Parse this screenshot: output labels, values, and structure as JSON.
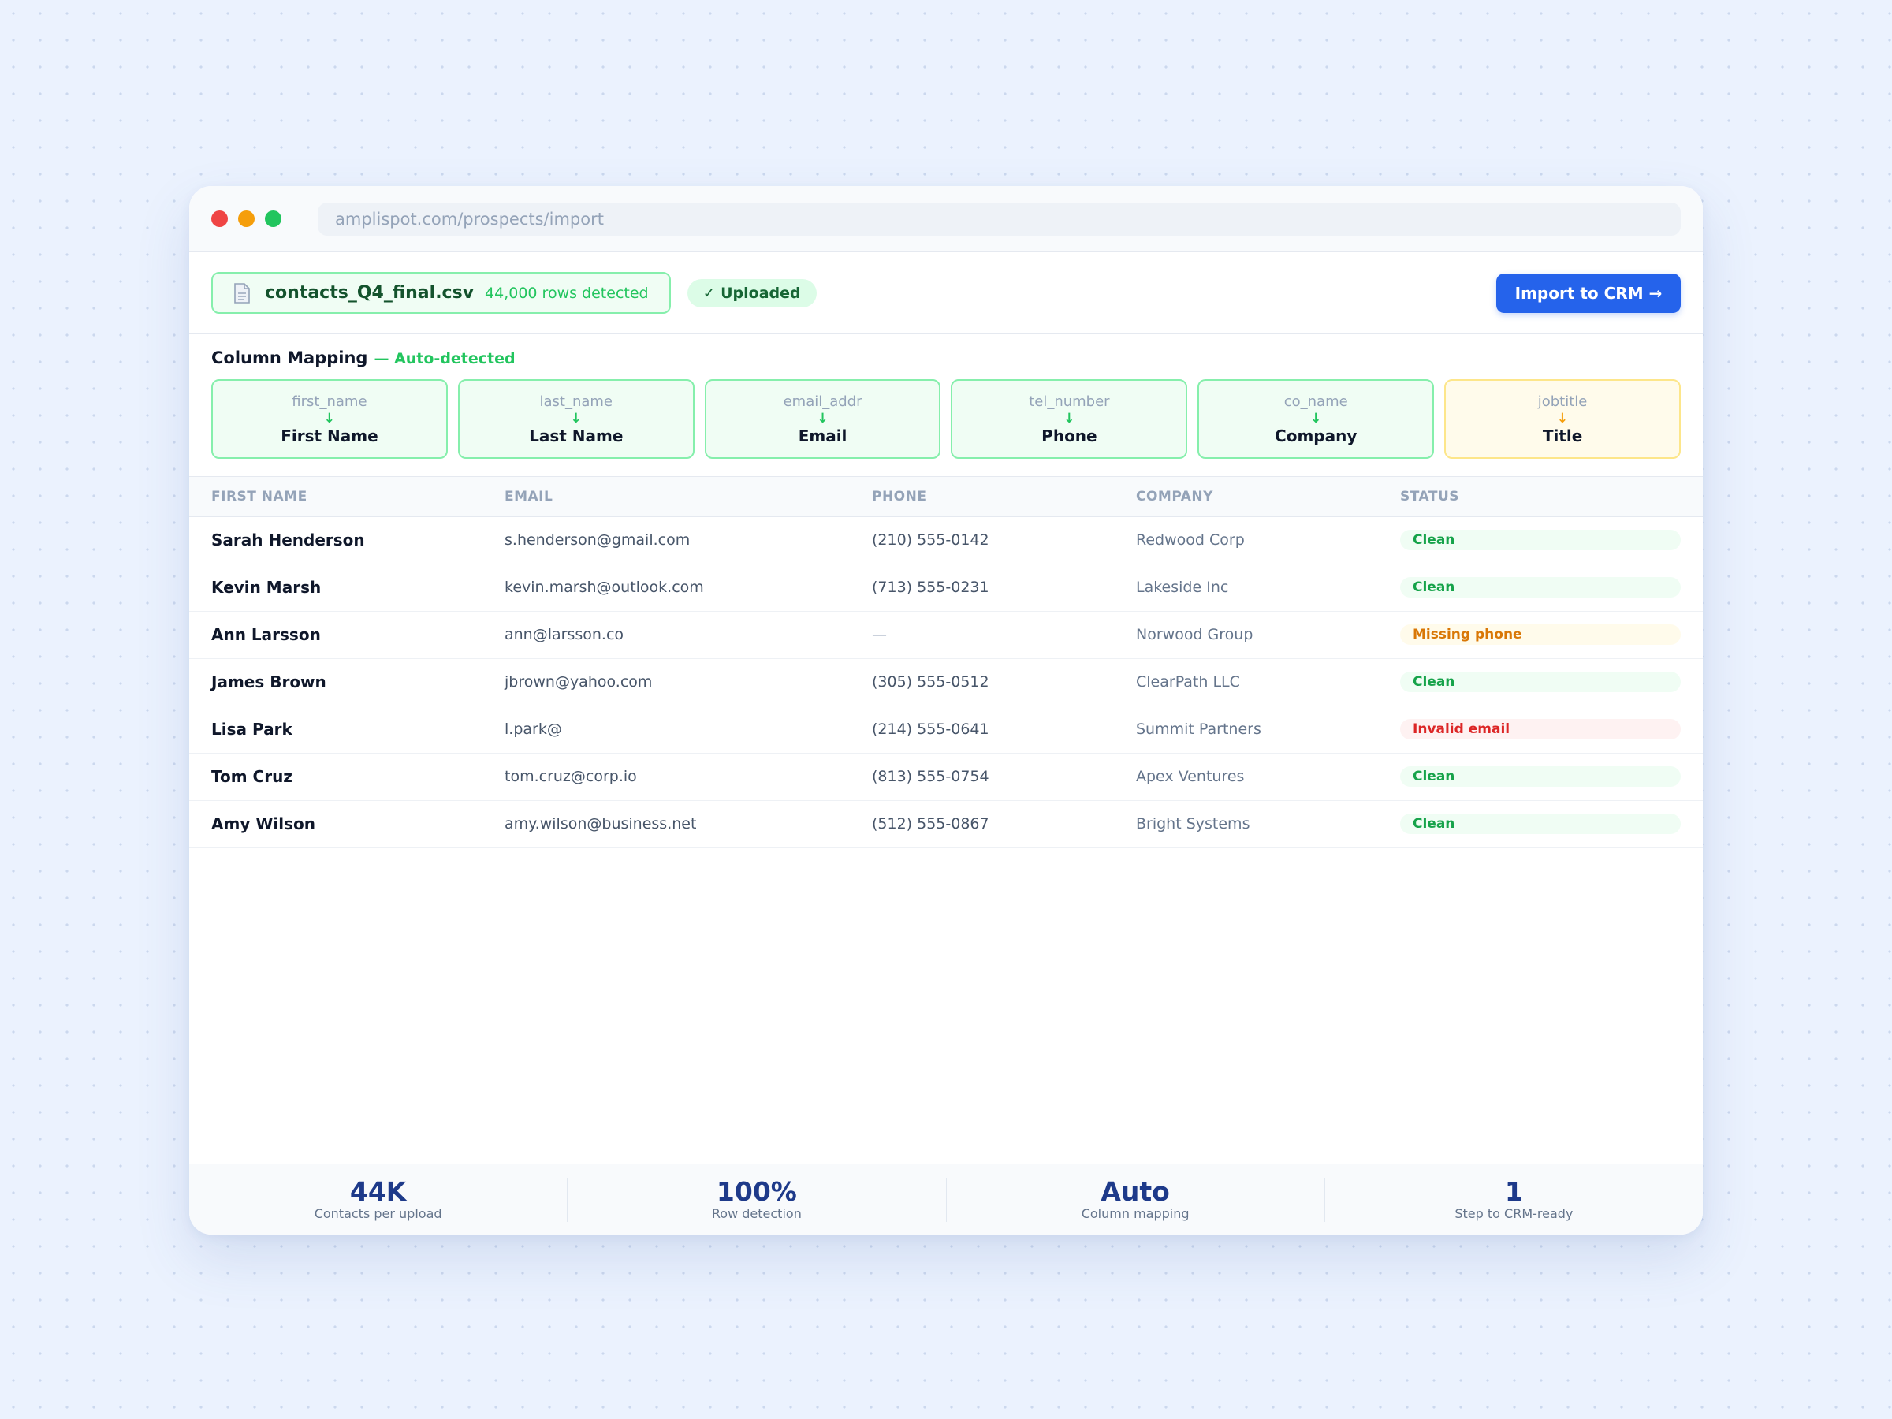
{
  "browser": {
    "url": "amplispot.com/prospects/import"
  },
  "file": {
    "icon": "document-icon",
    "name": "contacts_Q4_final.csv",
    "rows_detected": "44,000 rows detected",
    "status_badge": "✓ Uploaded",
    "import_button": "Import to CRM →"
  },
  "mapping": {
    "title": "Column Mapping",
    "subtitle": "— Auto-detected",
    "arrow": "↓",
    "cards": [
      {
        "source": "first_name",
        "target": "First Name",
        "state": "matched"
      },
      {
        "source": "last_name",
        "target": "Last Name",
        "state": "matched"
      },
      {
        "source": "email_addr",
        "target": "Email",
        "state": "matched"
      },
      {
        "source": "tel_number",
        "target": "Phone",
        "state": "matched"
      },
      {
        "source": "co_name",
        "target": "Company",
        "state": "matched"
      },
      {
        "source": "jobtitle",
        "target": "Title",
        "state": "warning"
      }
    ]
  },
  "table": {
    "columns": [
      "FIRST NAME",
      "EMAIL",
      "PHONE",
      "COMPANY",
      "STATUS"
    ],
    "rows": [
      {
        "name": "Sarah Henderson",
        "email": "s.henderson@gmail.com",
        "phone": "(210) 555-0142",
        "company": "Redwood Corp",
        "status": "Clean",
        "status_type": "clean"
      },
      {
        "name": "Kevin Marsh",
        "email": "kevin.marsh@outlook.com",
        "phone": "(713) 555-0231",
        "company": "Lakeside Inc",
        "status": "Clean",
        "status_type": "clean"
      },
      {
        "name": "Ann Larsson",
        "email": "ann@larsson.co",
        "phone": "—",
        "company": "Norwood Group",
        "status": "Missing phone",
        "status_type": "warn"
      },
      {
        "name": "James Brown",
        "email": "jbrown@yahoo.com",
        "phone": "(305) 555-0512",
        "company": "ClearPath LLC",
        "status": "Clean",
        "status_type": "clean"
      },
      {
        "name": "Lisa Park",
        "email": "l.park@",
        "phone": "(214) 555-0641",
        "company": "Summit Partners",
        "status": "Invalid email",
        "status_type": "error"
      },
      {
        "name": "Tom Cruz",
        "email": "tom.cruz@corp.io",
        "phone": "(813) 555-0754",
        "company": "Apex Ventures",
        "status": "Clean",
        "status_type": "clean"
      },
      {
        "name": "Amy Wilson",
        "email": "amy.wilson@business.net",
        "phone": "(512) 555-0867",
        "company": "Bright Systems",
        "status": "Clean",
        "status_type": "clean"
      }
    ]
  },
  "stats": [
    {
      "value": "44K",
      "label": "Contacts per upload"
    },
    {
      "value": "100%",
      "label": "Row detection"
    },
    {
      "value": "Auto",
      "label": "Column mapping"
    },
    {
      "value": "1",
      "label": "Step to CRM-ready"
    }
  ],
  "colors": {
    "accent": "#2563eb",
    "success": "#22c55e",
    "warning": "#f59e0b",
    "error": "#dc2626"
  }
}
